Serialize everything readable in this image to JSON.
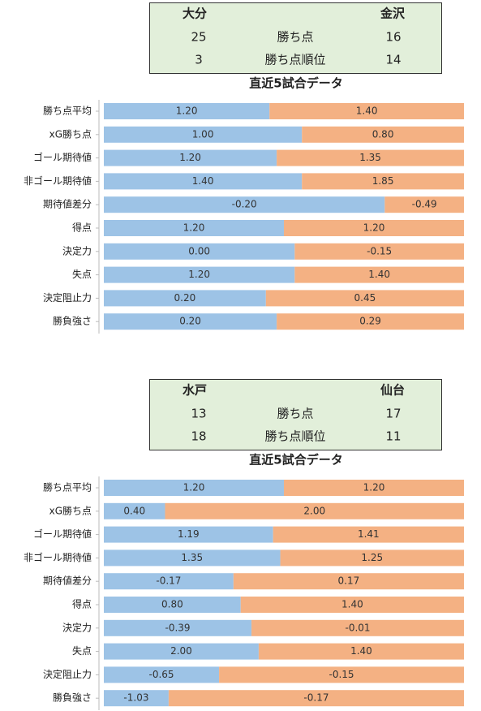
{
  "panels": [
    {
      "teams": [
        "大分",
        "金沢"
      ],
      "stats": [
        {
          "left": "25",
          "label": "勝ち点",
          "right": "16"
        },
        {
          "left": "3",
          "label": "勝ち点順位",
          "right": "14"
        }
      ],
      "subtitle": "直近5試合データ",
      "rows": [
        {
          "label": "勝ち点平均",
          "left": "1.20",
          "right": "1.40",
          "left_share": 46
        },
        {
          "label": "xG勝ち点",
          "left": "1.00",
          "right": "0.80",
          "left_share": 55
        },
        {
          "label": "ゴール期待値",
          "left": "1.20",
          "right": "1.35",
          "left_share": 48
        },
        {
          "label": "非ゴール期待値",
          "left": "1.40",
          "right": "1.85",
          "left_share": 55
        },
        {
          "label": "期待値差分",
          "left": "-0.20",
          "right": "-0.49",
          "left_share": 78
        },
        {
          "label": "得点",
          "left": "1.20",
          "right": "1.20",
          "left_share": 50
        },
        {
          "label": "決定力",
          "left": "0.00",
          "right": "-0.15",
          "left_share": 53
        },
        {
          "label": "失点",
          "left": "1.20",
          "right": "1.40",
          "left_share": 53
        },
        {
          "label": "決定阻止力",
          "left": "0.20",
          "right": "0.45",
          "left_share": 45
        },
        {
          "label": "勝負強さ",
          "left": "0.20",
          "right": "0.29",
          "left_share": 48
        }
      ]
    },
    {
      "teams": [
        "水戸",
        "仙台"
      ],
      "stats": [
        {
          "left": "13",
          "label": "勝ち点",
          "right": "17"
        },
        {
          "left": "18",
          "label": "勝ち点順位",
          "right": "11"
        }
      ],
      "subtitle": "直近5試合データ",
      "rows": [
        {
          "label": "勝ち点平均",
          "left": "1.20",
          "right": "1.20",
          "left_share": 50
        },
        {
          "label": "xG勝ち点",
          "left": "0.40",
          "right": "2.00",
          "left_share": 17
        },
        {
          "label": "ゴール期待値",
          "left": "1.19",
          "right": "1.41",
          "left_share": 47
        },
        {
          "label": "非ゴール期待値",
          "left": "1.35",
          "right": "1.25",
          "left_share": 49
        },
        {
          "label": "期待値差分",
          "left": "-0.17",
          "right": "0.17",
          "left_share": 36
        },
        {
          "label": "得点",
          "left": "0.80",
          "right": "1.40",
          "left_share": 38
        },
        {
          "label": "決定力",
          "left": "-0.39",
          "right": "-0.01",
          "left_share": 41
        },
        {
          "label": "失点",
          "left": "2.00",
          "right": "1.40",
          "left_share": 43
        },
        {
          "label": "決定阻止力",
          "left": "-0.65",
          "right": "-0.15",
          "left_share": 32
        },
        {
          "label": "勝負強さ",
          "left": "-1.03",
          "right": "-0.17",
          "left_share": 18
        }
      ]
    }
  ]
}
